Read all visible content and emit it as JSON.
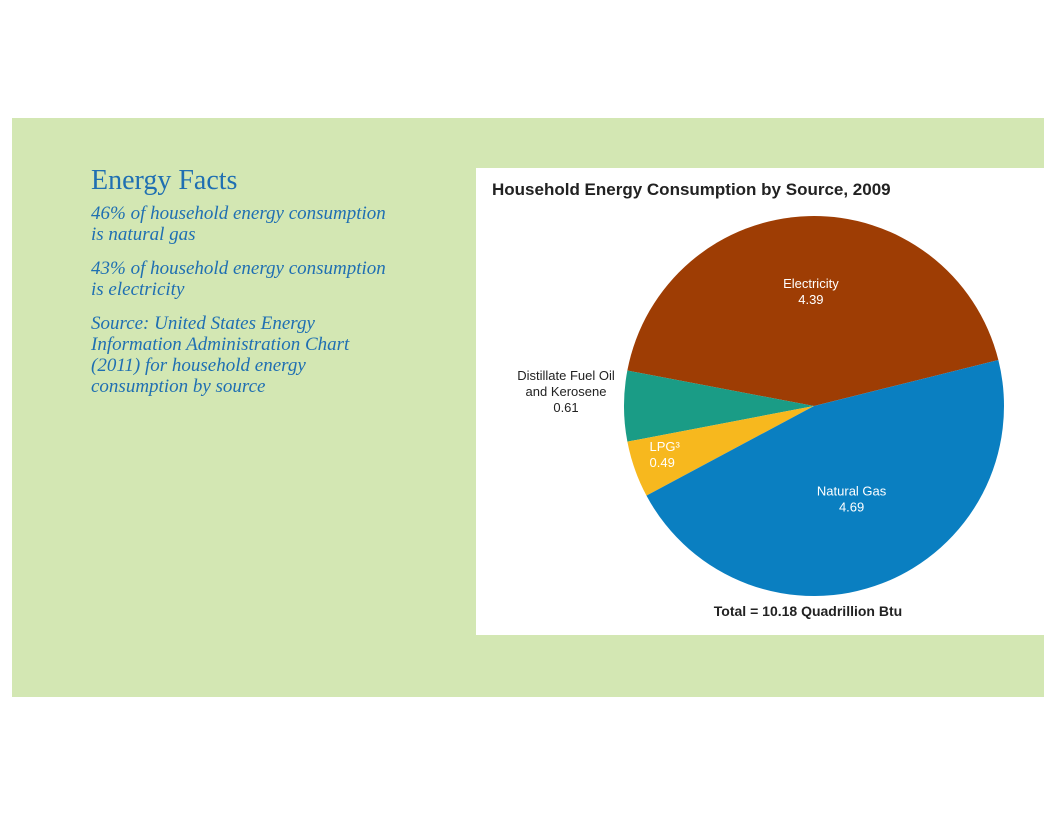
{
  "facts": {
    "title": "Energy Facts",
    "items": [
      "46% of household energy consumption is natural gas",
      "43% of household energy consumption is electricity",
      "Source: United States Energy Information Administration Chart (2011) for household energy consumption by source"
    ]
  },
  "chart_data": {
    "type": "pie",
    "title": "Household Energy Consumption by Source, 2009",
    "total_label": "Total = 10.18 Quadrillion Btu",
    "start_angle_deg": -14,
    "slices": [
      {
        "label": [
          "Electricity"
        ],
        "value": 4.39,
        "value_label": "4.39",
        "color": "#9e3d04",
        "label_color": "#ffffff",
        "label_inside": true
      },
      {
        "label": [
          "Distillate Fuel Oil",
          "and Kerosene"
        ],
        "value": 0.61,
        "value_label": "0.61",
        "color": "#1a9c86",
        "label_color": "#222222",
        "label_inside": false
      },
      {
        "label": [
          "LPG³"
        ],
        "value": 0.49,
        "value_label": "0.49",
        "color": "#f7b81e",
        "label_color": "#ffffff",
        "label_inside": true
      },
      {
        "label": [
          "Natural Gas"
        ],
        "value": 4.69,
        "value_label": "4.69",
        "color": "#0a7fc1",
        "label_color": "#ffffff",
        "label_inside": true
      }
    ]
  }
}
